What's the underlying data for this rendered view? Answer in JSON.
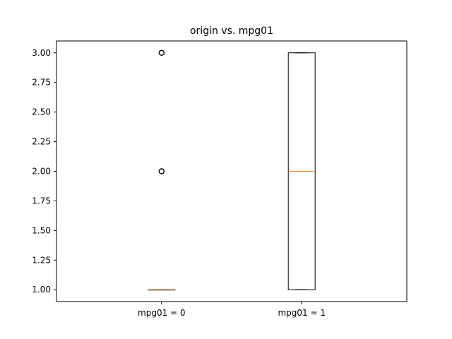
{
  "chart_data": {
    "type": "box",
    "title": "origin vs. mpg01",
    "xlabel": "",
    "ylabel": "",
    "ylim": [
      0.9,
      3.1
    ],
    "yticks": [
      1.0,
      1.25,
      1.5,
      1.75,
      2.0,
      2.25,
      2.5,
      2.75,
      3.0
    ],
    "ytick_labels": [
      "1.00",
      "1.25",
      "1.50",
      "1.75",
      "2.00",
      "2.25",
      "2.50",
      "2.75",
      "3.00"
    ],
    "grid": false,
    "colors": {
      "box": "#000000",
      "median": "#ff7f0e",
      "flier": "#000000"
    },
    "boxes": [
      {
        "label": "mpg01 = 0",
        "whisker_low": 1,
        "q1": 1,
        "median": 1,
        "q3": 1,
        "whisker_high": 1,
        "fliers": [
          2,
          3
        ]
      },
      {
        "label": "mpg01 = 1",
        "whisker_low": 1,
        "q1": 1,
        "median": 2,
        "q3": 3,
        "whisker_high": 3,
        "fliers": []
      }
    ]
  }
}
